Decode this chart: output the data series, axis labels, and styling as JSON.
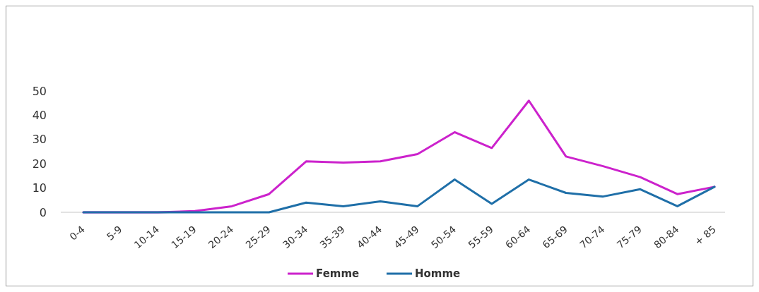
{
  "chart_data": {
    "type": "line",
    "categories": [
      "0-4",
      "5-9",
      "10-14",
      "15-19",
      "20-24",
      "25-29",
      "30-34",
      "35-39",
      "40-44",
      "45-49",
      "50-54",
      "55-59",
      "60-64",
      "65-69",
      "70-74",
      "75-79",
      "80-84",
      "+ 85"
    ],
    "series": [
      {
        "name": "Femme",
        "color": "#cc22cc",
        "values": [
          0,
          0,
          0,
          0.5,
          2.5,
          7.5,
          21,
          20.5,
          21,
          24,
          33,
          26.5,
          46,
          23,
          19,
          14.5,
          7.5,
          10.5
        ]
      },
      {
        "name": "Homme",
        "color": "#1f6fa8",
        "values": [
          0,
          0,
          0,
          0,
          0,
          0,
          4,
          2.5,
          4.5,
          2.5,
          13.5,
          3.5,
          13.5,
          8,
          6.5,
          9.5,
          2.5,
          10.5
        ]
      }
    ],
    "ylim": [
      0,
      50
    ],
    "yticks": [
      0,
      10,
      20,
      30,
      40,
      50
    ],
    "grid": false,
    "legend": "bottom",
    "marker": "none",
    "line_style": "solid"
  }
}
